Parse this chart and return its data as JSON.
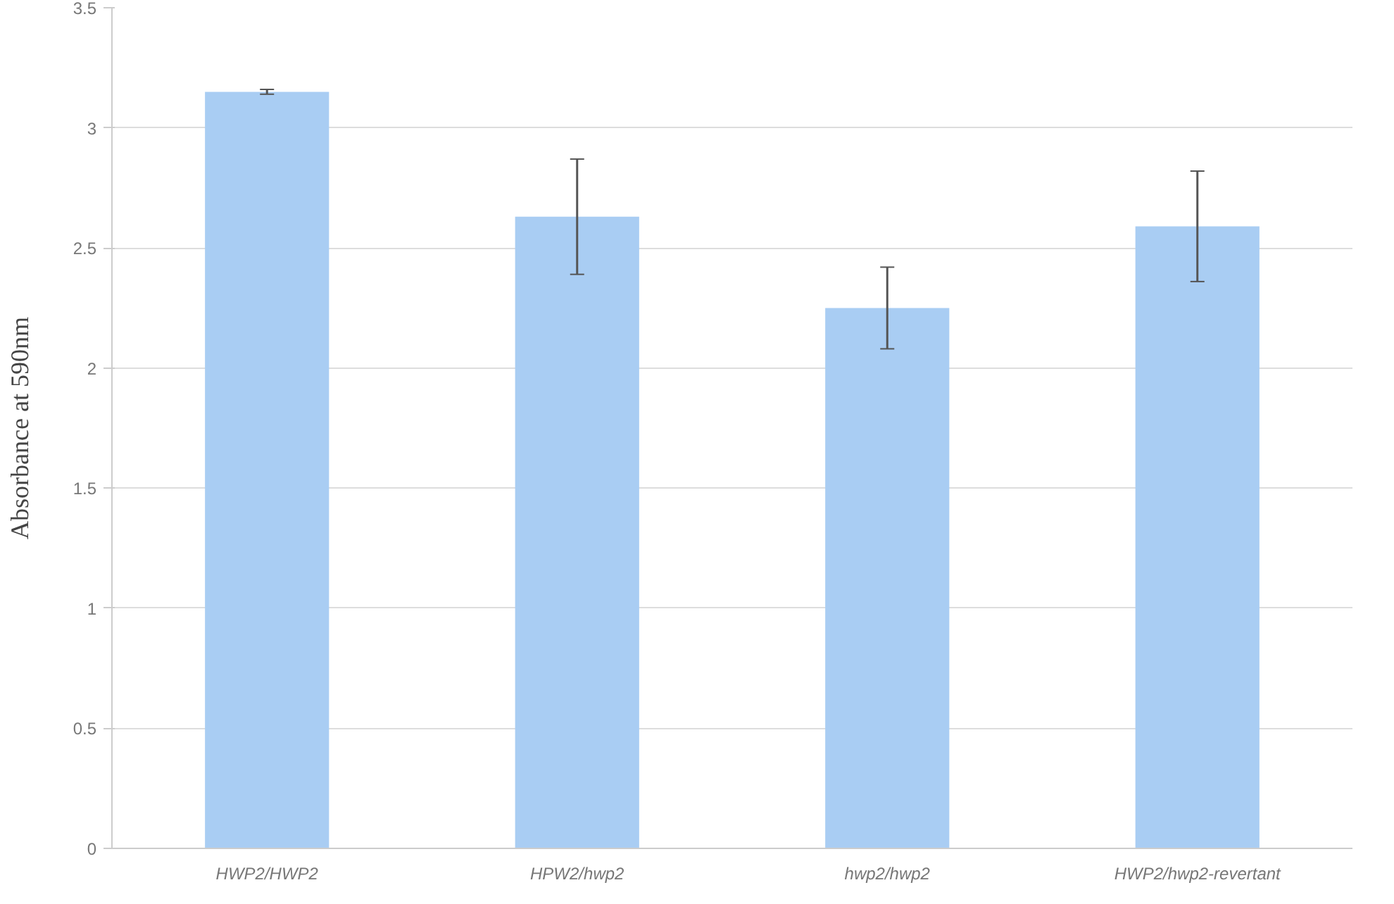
{
  "chart_data": {
    "type": "bar",
    "ylabel": "Absorbance at 590nm",
    "categories": [
      "HWP2/HWP2",
      "HPW2/hwp2",
      "hwp2/hwp2",
      "HWP2/hwp2-revertant"
    ],
    "values": [
      3.15,
      2.63,
      2.25,
      2.59
    ],
    "errors": [
      0.01,
      0.24,
      0.17,
      0.23
    ],
    "color": "#a9cdf3",
    "ylim": [
      0,
      3.5
    ],
    "yticks": [
      0,
      0.5,
      1,
      1.5,
      2,
      2.5,
      3,
      3.5
    ],
    "grid": "y"
  }
}
